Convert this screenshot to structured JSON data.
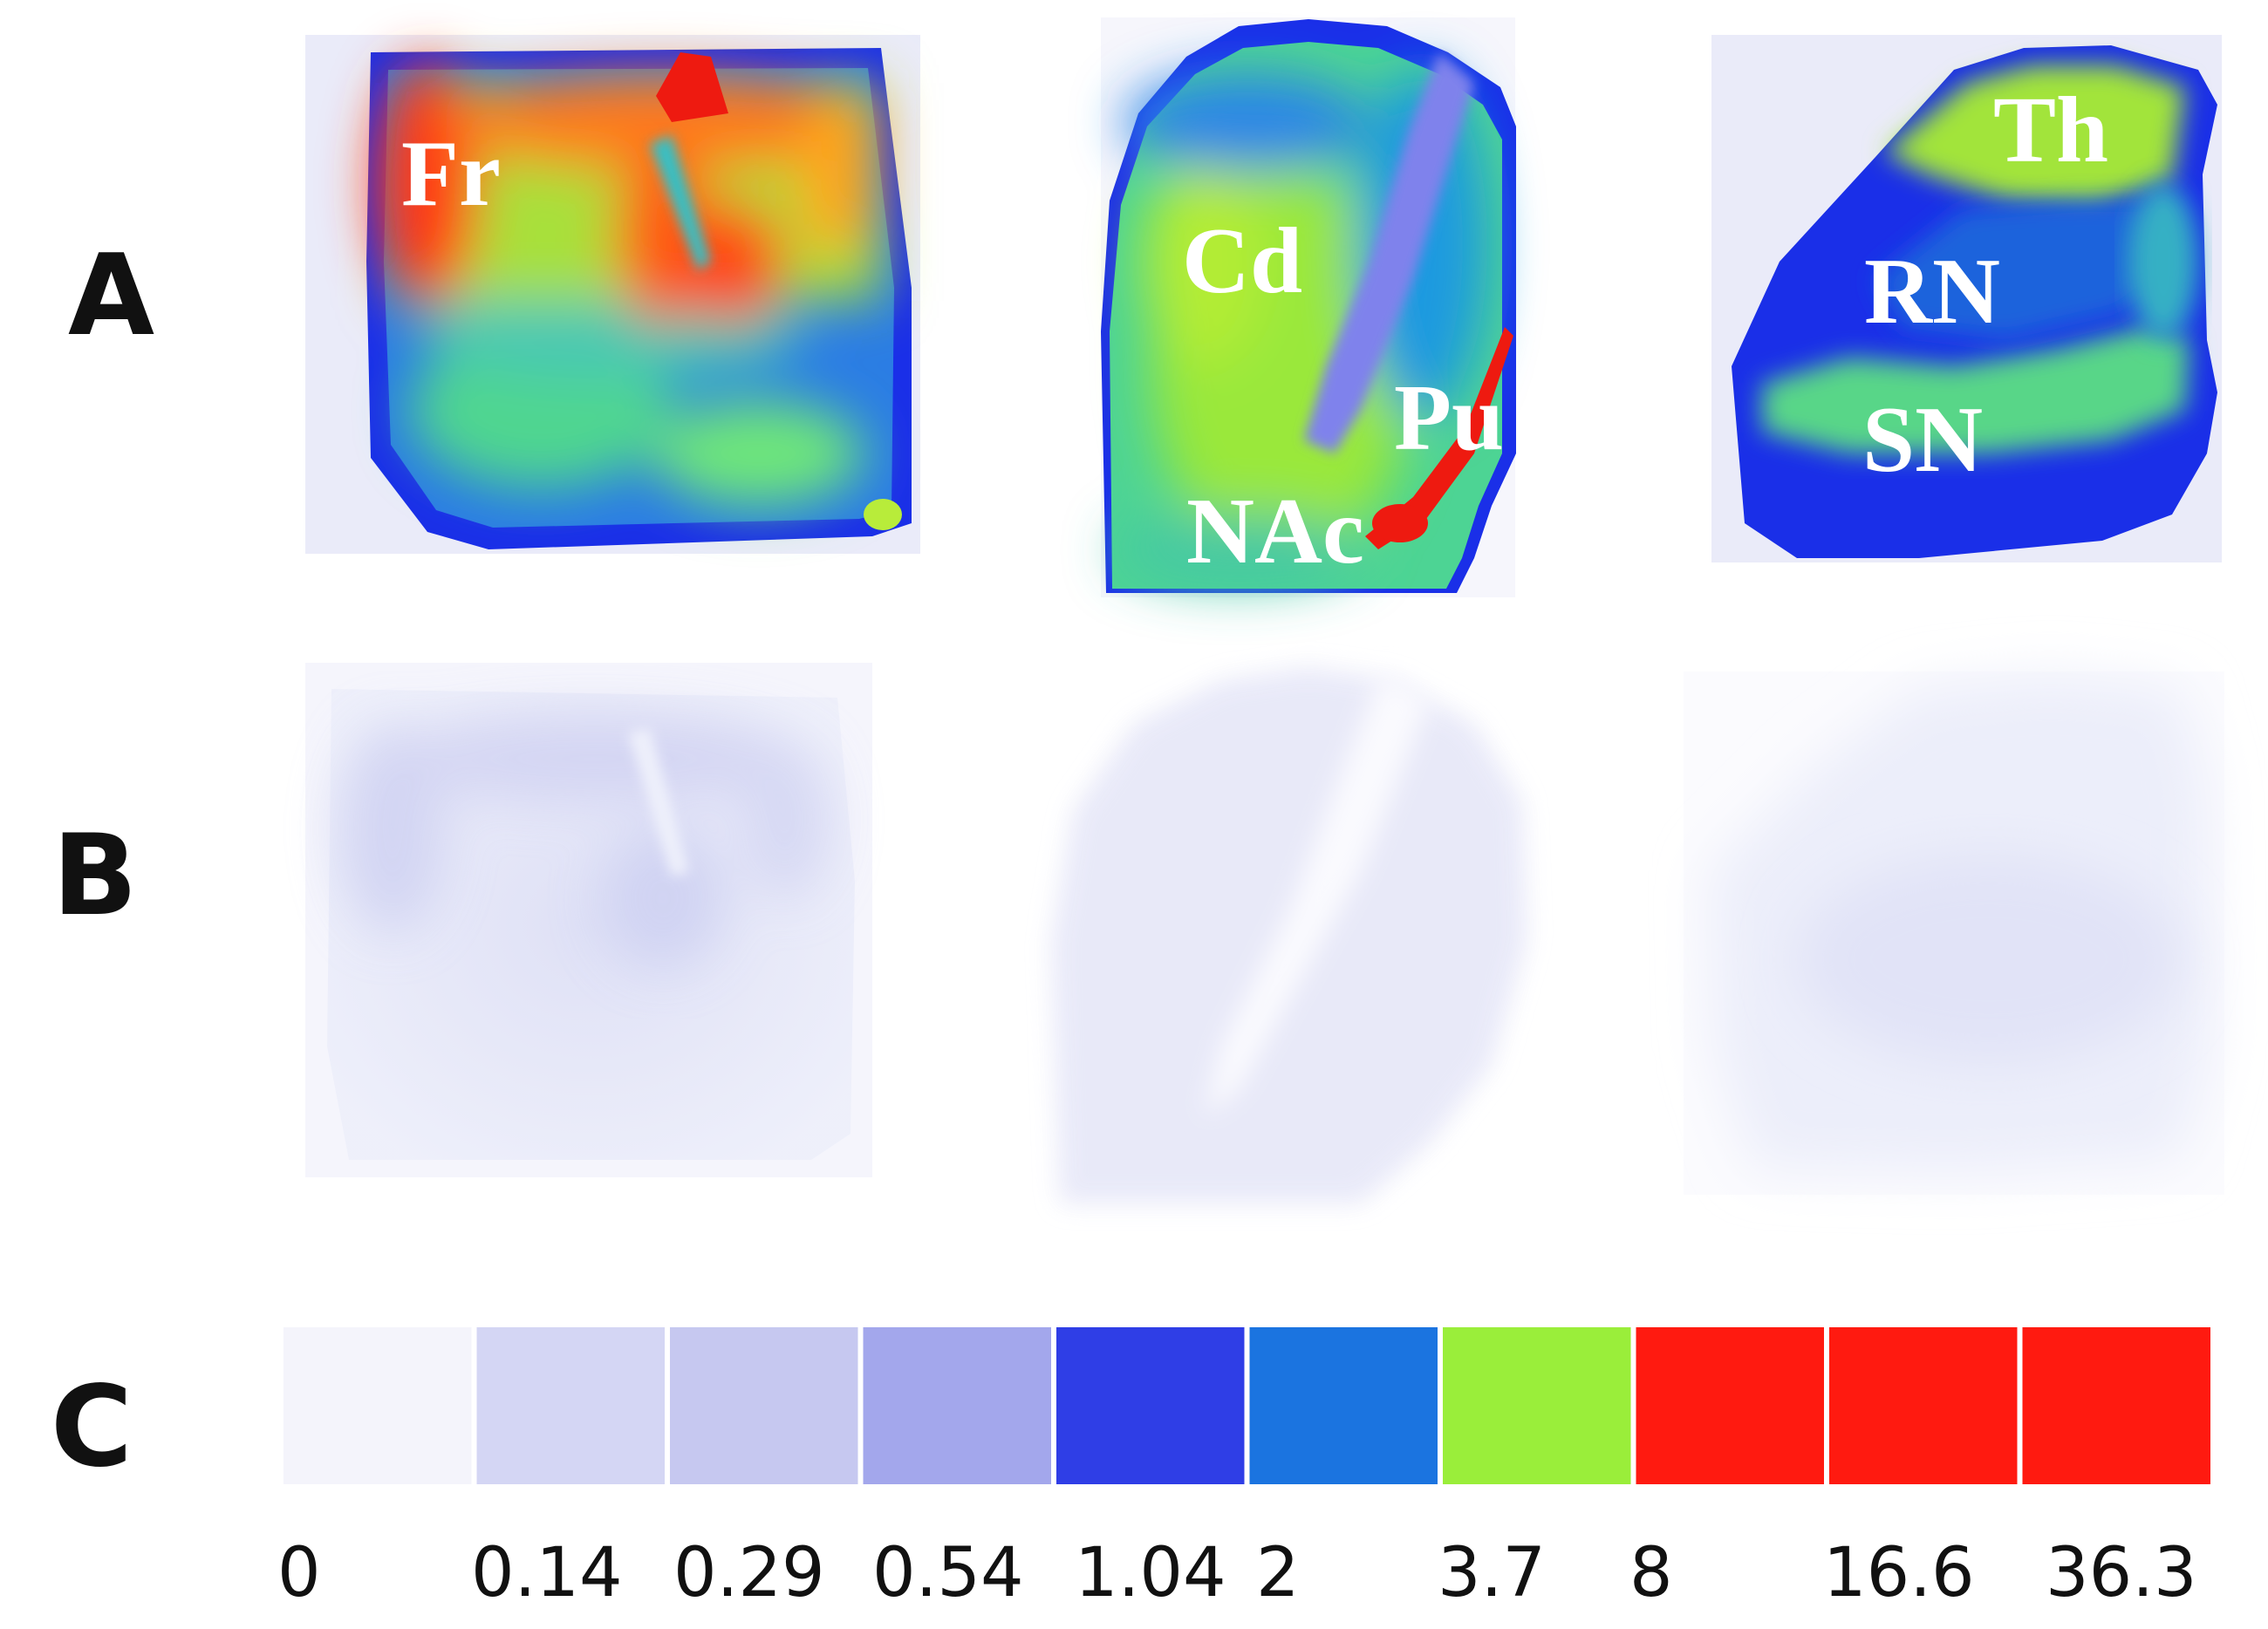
{
  "panels": {
    "a": "A",
    "b": "B",
    "c": "C"
  },
  "regions": {
    "frontal": "Fr",
    "caudate": "Cd",
    "putamen": "Pu",
    "accumbens": "NAc",
    "thalamus": "Th",
    "red_nucleus": "RN",
    "substantia_nigra": "SN"
  },
  "scale": {
    "ticks": [
      "0",
      "0.14",
      "0.29",
      "0.54",
      "1.04",
      "2",
      "3.7",
      "8",
      "16.6",
      "36.3"
    ],
    "colors": [
      "#f4f4fb",
      "#d4d6f4",
      "#c6c8f0",
      "#a3a7ec",
      "#2f3ee6",
      "#1b74e0",
      "#9aee3a",
      "#ff1a10",
      "#ff1a10",
      "#ff1a10"
    ]
  }
}
